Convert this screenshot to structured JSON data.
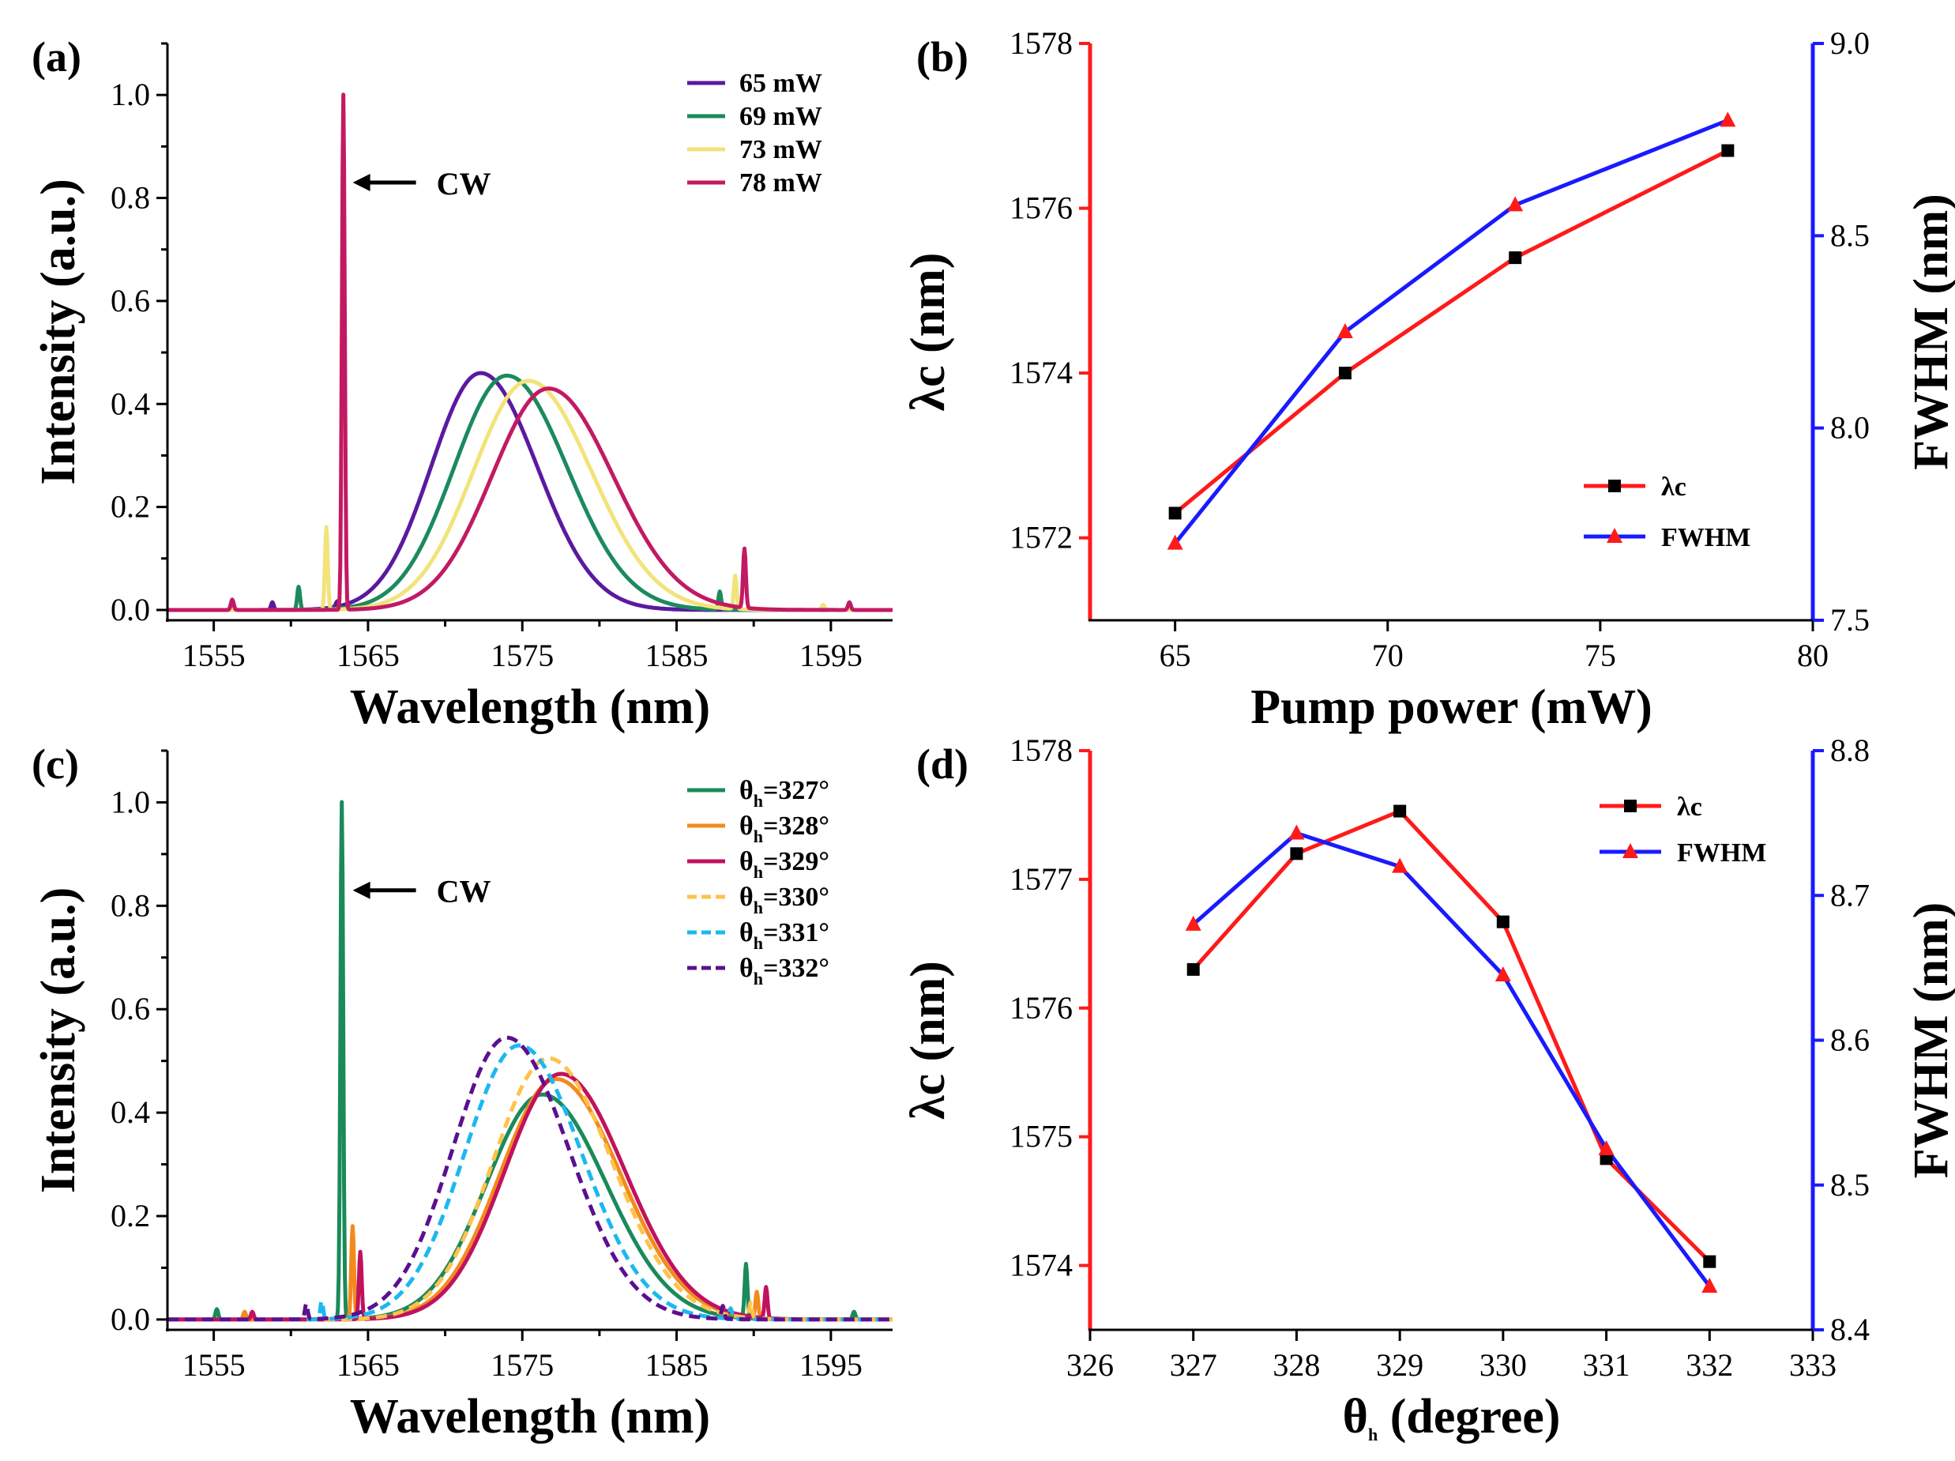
{
  "colors": {
    "p65": "#5b1a9e",
    "p69": "#1b8a5e",
    "p73": "#f2e37a",
    "p78": "#c21a62",
    "t327": "#1a8a5a",
    "t328": "#f38a1e",
    "t329": "#c0125e",
    "t330": "#ffc24a",
    "t331": "#1cb8f0",
    "t332": "#5a1090",
    "red": "#ff1a1a",
    "blue": "#1a1aff",
    "black": "#000000"
  },
  "chart_data": [
    {
      "panel": "(a)",
      "type": "line",
      "xlabel": "Wavelength (nm)",
      "ylabel": "Intensity (a.u.)",
      "xlim": [
        1552,
        1599
      ],
      "ylim": [
        -0.02,
        1.1
      ],
      "xticks": [
        1555,
        1565,
        1575,
        1585,
        1595
      ],
      "yticks": [
        0.0,
        0.2,
        0.4,
        0.6,
        0.8,
        1.0
      ],
      "legend_position": "top-right",
      "annotation": "CW",
      "series": [
        {
          "name": "65 mW",
          "color_key": "p65",
          "dash": false,
          "center": 1572.3,
          "fwhm": 7.7,
          "peak": 0.46,
          "spikes": [
            [
              1556.2,
              0.02
            ],
            [
              1558.8,
              0.015
            ],
            [
              1563.0,
              0.01
            ]
          ]
        },
        {
          "name": "69 mW",
          "color_key": "p69",
          "dash": false,
          "center": 1574.0,
          "fwhm": 8.25,
          "peak": 0.455,
          "spikes": [
            [
              1560.5,
              0.045
            ],
            [
              1587.8,
              0.035
            ]
          ]
        },
        {
          "name": "73 mW",
          "color_key": "p73",
          "dash": false,
          "center": 1575.4,
          "fwhm": 8.58,
          "peak": 0.445,
          "spikes": [
            [
              1562.3,
              0.16
            ],
            [
              1588.8,
              0.065
            ],
            [
              1594.5,
              0.01
            ]
          ]
        },
        {
          "name": "78 mW",
          "color_key": "p78",
          "dash": false,
          "center": 1576.7,
          "fwhm": 8.8,
          "peak": 0.43,
          "spikes": [
            [
              1563.4,
              1.0
            ],
            [
              1589.4,
              0.115
            ],
            [
              1596.2,
              0.015
            ],
            [
              1556.2,
              0.02
            ]
          ]
        }
      ]
    },
    {
      "panel": "(b)",
      "type": "line",
      "xlabel": "Pump power (mW)",
      "ylabel": "λc (nm)",
      "y2label": "FWHM (nm)",
      "xlim": [
        63,
        80
      ],
      "ylim": [
        1571,
        1578
      ],
      "y2lim": [
        7.5,
        9.0
      ],
      "xticks": [
        65,
        70,
        75,
        80
      ],
      "yticks": [
        1572,
        1574,
        1576,
        1578
      ],
      "y2ticks": [
        "7.5",
        "8.0",
        "8.5",
        "9.0"
      ],
      "legend_position": "bottom-right",
      "x": [
        65,
        69,
        73,
        78
      ],
      "series": [
        {
          "name": "λc",
          "axis": "left",
          "color_key": "red",
          "marker": "square",
          "values": [
            1572.3,
            1574.0,
            1575.4,
            1576.7
          ]
        },
        {
          "name": "FWHM",
          "axis": "right",
          "color_key": "blue",
          "marker": "triangle",
          "values": [
            7.7,
            8.25,
            8.58,
            8.8
          ]
        }
      ]
    },
    {
      "panel": "(c)",
      "type": "line",
      "xlabel": "Wavelength (nm)",
      "ylabel": "Intensity (a.u.)",
      "xlim": [
        1552,
        1599
      ],
      "ylim": [
        -0.02,
        1.1
      ],
      "xticks": [
        1555,
        1565,
        1575,
        1585,
        1595
      ],
      "yticks": [
        0.0,
        0.2,
        0.4,
        0.6,
        0.8,
        1.0
      ],
      "legend_position": "top-right",
      "annotation": "CW",
      "series": [
        {
          "name": "θh=327°",
          "color_key": "t327",
          "dash": false,
          "center": 1576.3,
          "fwhm": 8.68,
          "peak": 0.435,
          "spikes": [
            [
              1563.3,
              1.0
            ],
            [
              1589.5,
              0.105
            ],
            [
              1555.2,
              0.02
            ],
            [
              1596.5,
              0.015
            ]
          ]
        },
        {
          "name": "θh=328°",
          "color_key": "t328",
          "dash": false,
          "center": 1577.2,
          "fwhm": 8.74,
          "peak": 0.465,
          "spikes": [
            [
              1564.0,
              0.18
            ],
            [
              1590.2,
              0.05
            ],
            [
              1557.0,
              0.015
            ]
          ]
        },
        {
          "name": "θh=329°",
          "color_key": "t329",
          "dash": false,
          "center": 1577.5,
          "fwhm": 8.72,
          "peak": 0.475,
          "spikes": [
            [
              1564.5,
              0.13
            ],
            [
              1590.8,
              0.06
            ],
            [
              1557.5,
              0.015
            ]
          ]
        },
        {
          "name": "θh=330°",
          "color_key": "t330",
          "dash": true,
          "center": 1576.7,
          "fwhm": 8.64,
          "peak": 0.505,
          "spikes": [
            [
              1589.8,
              0.03
            ]
          ]
        },
        {
          "name": "θh=331°",
          "color_key": "t331",
          "dash": true,
          "center": 1574.8,
          "fwhm": 8.52,
          "peak": 0.53,
          "spikes": [
            [
              1562.0,
              0.035
            ],
            [
              1588.5,
              0.02
            ]
          ]
        },
        {
          "name": "θh=332°",
          "color_key": "t332",
          "dash": true,
          "center": 1574.0,
          "fwhm": 8.43,
          "peak": 0.545,
          "spikes": [
            [
              1561.0,
              0.03
            ],
            [
              1588.0,
              0.025
            ]
          ]
        }
      ]
    },
    {
      "panel": "(d)",
      "type": "line",
      "xlabel": "θh (degree)",
      "ylabel": "λc (nm)",
      "y2label": "FWHM (nm)",
      "xlim": [
        326,
        333
      ],
      "ylim": [
        1573.5,
        1578
      ],
      "y2lim": [
        8.4,
        8.8
      ],
      "xticks": [
        326,
        327,
        328,
        329,
        330,
        331,
        332,
        333
      ],
      "yticks": [
        1574,
        1575,
        1576,
        1577,
        1578
      ],
      "y2ticks": [
        "8.4",
        "8.5",
        "8.6",
        "8.7",
        "8.8"
      ],
      "legend_position": "top-right",
      "x": [
        327,
        328,
        329,
        330,
        331,
        332
      ],
      "series": [
        {
          "name": "λc",
          "axis": "left",
          "color_key": "red",
          "marker": "square",
          "values": [
            1576.3,
            1577.2,
            1577.53,
            1576.67,
            1574.83,
            1574.03
          ]
        },
        {
          "name": "FWHM",
          "axis": "right",
          "color_key": "blue",
          "marker": "triangle",
          "values": [
            8.68,
            8.743,
            8.72,
            8.645,
            8.525,
            8.43
          ]
        }
      ]
    }
  ]
}
